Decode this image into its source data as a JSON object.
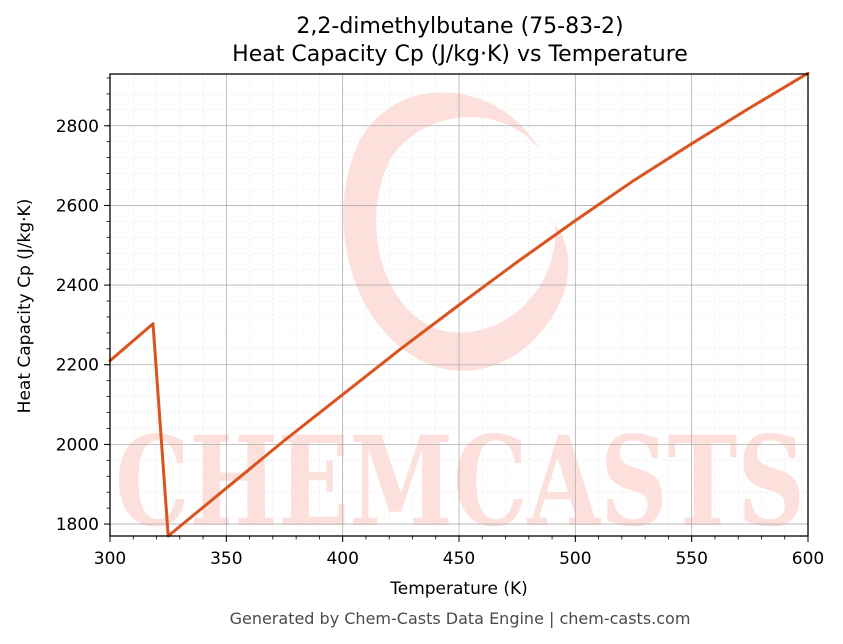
{
  "chart_data": {
    "type": "line",
    "title_line1": "2,2-dimethylbutane (75-83-2)",
    "title_line2": "Heat Capacity Cp (J/kg·K) vs Temperature",
    "xlabel": "Temperature (K)",
    "ylabel": "Heat Capacity Cp (J/kg·K)",
    "xlim": [
      300,
      600
    ],
    "ylim": [
      1770,
      2930
    ],
    "xticks": [
      300,
      350,
      400,
      450,
      500,
      550,
      600
    ],
    "yticks": [
      1800,
      2000,
      2200,
      2400,
      2600,
      2800
    ],
    "grid": true,
    "series": [
      {
        "color": "#d9541e",
        "x": [
          300,
          318.5,
          325,
          350,
          375,
          400,
          425,
          450,
          475,
          500,
          525,
          550,
          575,
          600
        ],
        "y": [
          2210,
          2303,
          1770,
          1890,
          2010,
          2125,
          2240,
          2350,
          2458,
          2562,
          2662,
          2755,
          2845,
          2932
        ]
      }
    ]
  },
  "watermark": {
    "text": "CHEMCASTS"
  },
  "footer": "Generated by Chem-Casts Data Engine | chem-casts.com"
}
